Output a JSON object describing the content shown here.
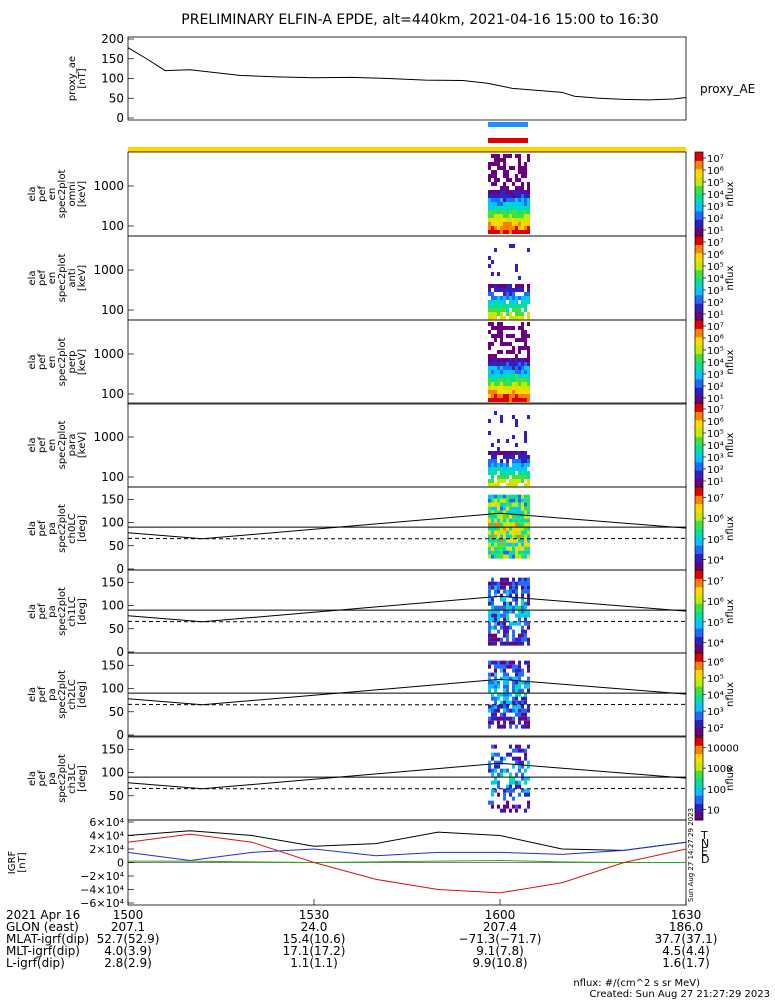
{
  "title": "PRELIMINARY ELFIN-A EPDE, alt=440km, 2021-04-16 15:00 to 16:30",
  "ae_panel": {
    "ylabel": [
      "proxy_ae",
      "[nT]"
    ],
    "legend": "proxy_AE",
    "yticks": [
      "200",
      "150",
      "100",
      "50",
      "0"
    ]
  },
  "spec_panels": [
    {
      "ylabel": [
        "ela",
        "pef",
        "en",
        "spec2plot",
        "omni",
        "[keV]"
      ],
      "yticks": [
        "1000",
        "100"
      ],
      "cbar_ticks": [
        "10^7",
        "10^6",
        "10^5",
        "10^4",
        "10^3",
        "10^2",
        "10^1"
      ],
      "cbar_label": "nflux"
    },
    {
      "ylabel": [
        "ela",
        "pef",
        "en",
        "spec2plot",
        "anti",
        "[keV]"
      ],
      "yticks": [
        "1000",
        "100"
      ],
      "cbar_ticks": [
        "10^7",
        "10^6",
        "10^5",
        "10^4",
        "10^3",
        "10^2",
        "10^1"
      ],
      "cbar_label": "nflux"
    },
    {
      "ylabel": [
        "ela",
        "pef",
        "en",
        "spec2plot",
        "perp",
        "[keV]"
      ],
      "yticks": [
        "1000",
        "100"
      ],
      "cbar_ticks": [
        "10^7",
        "10^6",
        "10^5",
        "10^4",
        "10^3",
        "10^2",
        "10^1"
      ],
      "cbar_label": "nflux"
    },
    {
      "ylabel": [
        "ela",
        "pef",
        "en",
        "spec2plot",
        "para",
        "[keV]"
      ],
      "yticks": [
        "1000",
        "100"
      ],
      "cbar_ticks": [
        "10^7",
        "10^6",
        "10^5",
        "10^4",
        "10^3",
        "10^2",
        "10^1"
      ],
      "cbar_label": "nflux"
    }
  ],
  "pa_panels": [
    {
      "ylabel": [
        "ela",
        "pef",
        "pa",
        "spec2plot",
        "ch0LC",
        "[deg]"
      ],
      "yticks": [
        "150",
        "100",
        "50",
        "0"
      ],
      "cbar_ticks": [
        "10^7",
        "10^6",
        "10^5",
        "10^4"
      ],
      "cbar_label": "nflux"
    },
    {
      "ylabel": [
        "ela",
        "pef",
        "pa",
        "spec2plot",
        "ch1LC",
        "[deg]"
      ],
      "yticks": [
        "150",
        "100",
        "50",
        "0"
      ],
      "cbar_ticks": [
        "10^7",
        "10^6",
        "10^5",
        "10^4"
      ],
      "cbar_label": "nflux"
    },
    {
      "ylabel": [
        "ela",
        "pef",
        "pa",
        "spec2plot",
        "ch2LC",
        "[deg]"
      ],
      "yticks": [
        "150",
        "100",
        "50",
        "0"
      ],
      "cbar_ticks": [
        "10^6",
        "10^5",
        "10^4",
        "10^3",
        "10^2"
      ],
      "cbar_label": "nflux"
    },
    {
      "ylabel": [
        "ela",
        "pef",
        "pa",
        "spec2plot",
        "ch3LC",
        "[deg]"
      ],
      "yticks": [
        "150",
        "100",
        "50"
      ],
      "cbar_ticks": [
        "10000",
        "1000",
        "100",
        "10"
      ],
      "cbar_label": "nflux"
    }
  ],
  "igrf_panel": {
    "ylabel": [
      "IGRF",
      "[nT]"
    ],
    "yticks": [
      "6×10^4",
      "4×10^4",
      "2×10^4",
      "0",
      "−2×10^4",
      "−4×10^4",
      "−6×10^4"
    ],
    "legend": [
      {
        "label": "T",
        "color": "#000000"
      },
      {
        "label": "N",
        "color": "#1f2fd8"
      },
      {
        "label": "E",
        "color": "#22aa22"
      },
      {
        "label": "D",
        "color": "#dd1111"
      }
    ]
  },
  "footer": {
    "rows": [
      {
        "label": "2021 Apr 16",
        "values": [
          "1500",
          "1530",
          "1600",
          "1630"
        ]
      },
      {
        "label": "GLON (east)",
        "values": [
          "207.1",
          "24.0",
          "207.4",
          "186.0"
        ]
      },
      {
        "label": "MLAT-igrf(dip)",
        "values": [
          "52.7(52.9)",
          "15.4(10.6)",
          "−71.3(−71.7)",
          "37.7(37.1)"
        ]
      },
      {
        "label": "MLT-igrf(dip)",
        "values": [
          "4.0(3.9)",
          "17.1(17.2)",
          "9.1(7.8)",
          "4.5(4.4)"
        ]
      },
      {
        "label": "L-igrf(dip)",
        "values": [
          "2.8(2.9)",
          "1.1(1.1)",
          "9.9(10.8)",
          "1.6(1.7)"
        ]
      }
    ],
    "units_note": "nflux: #/(cm^2 s sr MeV)",
    "created": "Created: Sun Aug 27 21:27:29 2023",
    "vertical_stamp": "Sun Aug 27 14:27:29 2023"
  },
  "colors": {
    "science_zone_bar": "#ffd700",
    "orbit_bar_blue": "#1e90ff",
    "orbit_bar_red": "#e00000",
    "ae_line": "#000000"
  },
  "chart_data": [
    {
      "type": "line",
      "title": "",
      "xlabel": "",
      "ylabel": "proxy_ae [nT]",
      "x_range_time": [
        "15:00",
        "16:30"
      ],
      "ylim": [
        0,
        200
      ],
      "series": [
        {
          "name": "proxy_AE",
          "x_min": [
            0,
            3,
            6,
            10,
            18,
            24,
            30,
            36,
            42,
            48,
            54,
            58,
            62,
            66,
            70,
            72,
            76,
            80,
            84,
            88,
            90
          ],
          "values": [
            178,
            150,
            120,
            122,
            108,
            104,
            102,
            103,
            100,
            96,
            95,
            88,
            75,
            70,
            65,
            55,
            50,
            47,
            46,
            48,
            52
          ]
        }
      ]
    },
    {
      "type": "line",
      "title": "",
      "xlabel": "",
      "ylabel": "IGRF [nT]",
      "x_range_time": [
        "15:00",
        "16:30"
      ],
      "ylim": [
        -60000,
        60000
      ],
      "series": [
        {
          "name": "T",
          "x_min": [
            0,
            10,
            20,
            30,
            40,
            50,
            60,
            70,
            80,
            90
          ],
          "values": [
            40000,
            47000,
            40000,
            24000,
            28000,
            45000,
            40000,
            20000,
            18000,
            30000
          ]
        },
        {
          "name": "N",
          "x_min": [
            0,
            10,
            20,
            30,
            40,
            50,
            60,
            70,
            80,
            90
          ],
          "values": [
            15000,
            3000,
            15000,
            20000,
            10000,
            15000,
            15000,
            12000,
            18000,
            30000
          ]
        },
        {
          "name": "E",
          "x_min": [
            0,
            10,
            20,
            30,
            40,
            50,
            60,
            70,
            80,
            90
          ],
          "values": [
            2000,
            2000,
            1000,
            0,
            1000,
            2000,
            3000,
            1000,
            0,
            0
          ]
        },
        {
          "name": "D",
          "x_min": [
            0,
            10,
            20,
            30,
            40,
            50,
            60,
            70,
            80,
            90
          ],
          "values": [
            30000,
            42000,
            30000,
            0,
            -25000,
            -40000,
            -45000,
            -30000,
            0,
            20000
          ]
        }
      ]
    },
    {
      "type": "line",
      "title": "",
      "xlabel": "",
      "ylabel": "pa [deg]",
      "x_range_time": [
        "15:00",
        "16:30"
      ],
      "ylim": [
        0,
        180
      ],
      "series": [
        {
          "name": "",
          "x_min": [
            0,
            12,
            60,
            90
          ],
          "values": [
            78,
            65,
            120,
            88
          ]
        },
        {
          "name": "",
          "x_min": [
            0,
            12,
            60,
            90
          ],
          "values": [
            66,
            65,
            65,
            66
          ]
        },
        {
          "name": "",
          "x_min": [
            0,
            90
          ],
          "values": [
            90,
            90
          ]
        }
      ]
    }
  ]
}
